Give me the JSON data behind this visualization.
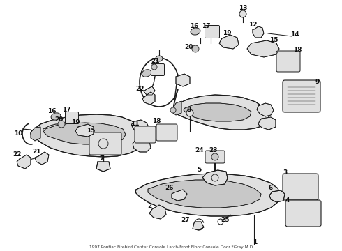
{
  "background_color": "#ffffff",
  "fig_width": 4.9,
  "fig_height": 3.6,
  "dpi": 100,
  "subtitle": "1997 Pontiac Firebird Center Console Latch-Front Floor Console Door *Gray M D",
  "text_color": "#111111",
  "font_size": 6.5,
  "ec": "#1a1a1a",
  "fc_light": "#e0e0e0",
  "fc_mid": "#c8c8c8",
  "lw_main": 0.8
}
